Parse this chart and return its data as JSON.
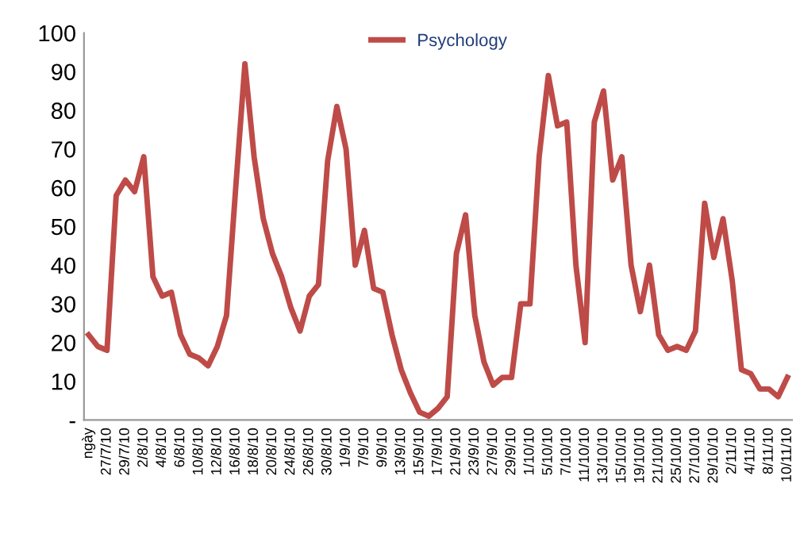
{
  "chart_data": {
    "type": "line",
    "categories": [
      "ngày",
      null,
      "27/7/10",
      null,
      "29/7/10",
      null,
      "2/8/10",
      null,
      "4/8/10",
      null,
      "6/8/10",
      null,
      "10/8/10",
      null,
      "12/8/10",
      null,
      "16/8/10",
      null,
      "18/8/10",
      null,
      "20/8/10",
      null,
      "24/8/10",
      null,
      "26/8/10",
      null,
      "30/8/10",
      null,
      "1/9/10",
      null,
      "7/9/10",
      null,
      "9/9/10",
      null,
      "13/9/10",
      null,
      "15/9/10",
      null,
      "17/9/10",
      null,
      "21/9/10",
      null,
      "23/9/10",
      null,
      "27/9/10",
      null,
      "29/9/10",
      null,
      "1/10/10",
      null,
      "5/10/10",
      null,
      "7/10/10",
      null,
      "11/10/10",
      null,
      "13/10/10",
      null,
      "15/10/10",
      null,
      "19/10/10",
      null,
      "21/10/10",
      null,
      "25/10/10",
      null,
      "27/10/10",
      null,
      "29/10/10",
      null,
      "2/11/10",
      null,
      "4/11/10",
      null,
      "8/11/10",
      null,
      "10/11/10"
    ],
    "series": [
      {
        "name": "Psychology",
        "color": "#be4b48",
        "values": [
          22,
          19,
          18,
          58,
          62,
          59,
          68,
          37,
          32,
          33,
          22,
          17,
          16,
          14,
          19,
          27,
          60,
          92,
          68,
          52,
          43,
          37,
          29,
          23,
          32,
          35,
          67,
          81,
          70,
          40,
          49,
          34,
          33,
          22,
          13,
          7,
          2,
          1,
          3,
          6,
          43,
          53,
          27,
          15,
          9,
          11,
          11,
          30,
          30,
          68,
          89,
          76,
          77,
          40,
          20,
          77,
          85,
          62,
          68,
          40,
          28,
          40,
          22,
          18,
          19,
          18,
          23,
          56,
          42,
          52,
          36,
          13,
          12,
          8,
          8,
          6,
          11
        ]
      }
    ],
    "ylim": [
      0,
      100
    ],
    "yticks": [
      {
        "value": 0,
        "label": "-"
      },
      10,
      20,
      30,
      40,
      50,
      60,
      70,
      80,
      90,
      100
    ],
    "grid": false,
    "legend": "top right",
    "marker": "none",
    "line_style": "solid"
  }
}
